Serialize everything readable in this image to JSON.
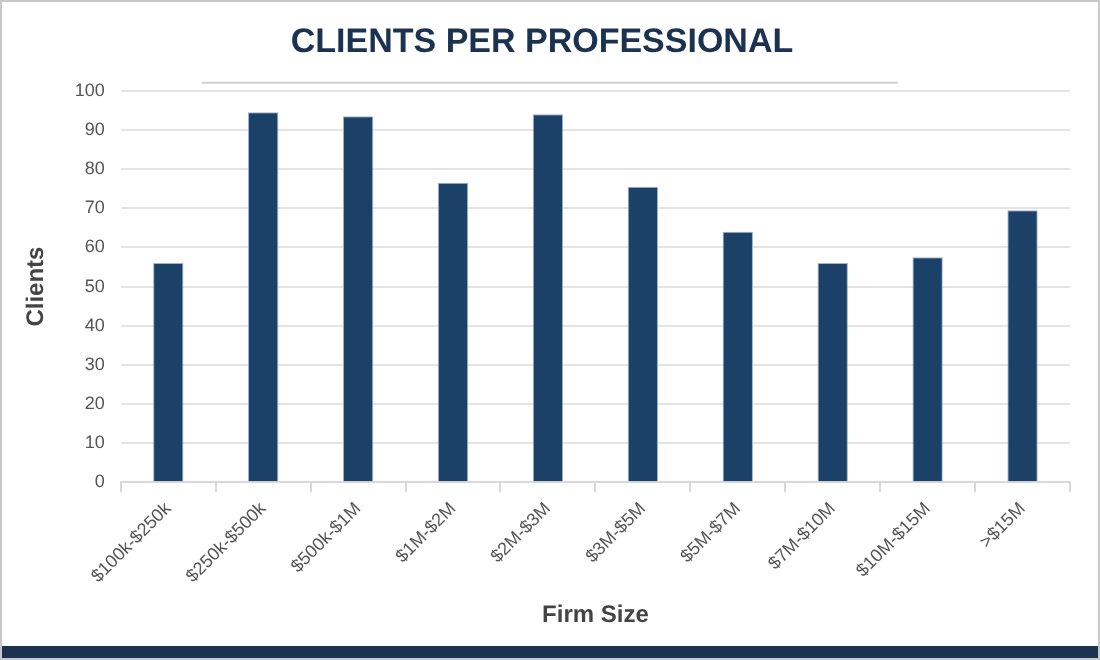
{
  "chart_data": {
    "type": "bar",
    "title": "CLIENTS PER PROFESSIONAL",
    "xlabel": "Firm Size",
    "ylabel": "Clients",
    "categories": [
      "$100k-$250k",
      "$250k-$500k",
      "$500k-$1M",
      "$1M-$2M",
      "$2M-$3M",
      "$3M-$5M",
      "$5M-$7M",
      "$7M-$10M",
      "$10M-$15M",
      ">$15M"
    ],
    "values": [
      56,
      94.5,
      93.5,
      76.5,
      94,
      75.5,
      64,
      56,
      57.5,
      69.5
    ],
    "color": "#1b4168",
    "ylim": [
      0,
      100
    ],
    "yticks": [
      0,
      10,
      20,
      30,
      40,
      50,
      60,
      70,
      80,
      90,
      100
    ],
    "grid": "y",
    "legend": false
  }
}
